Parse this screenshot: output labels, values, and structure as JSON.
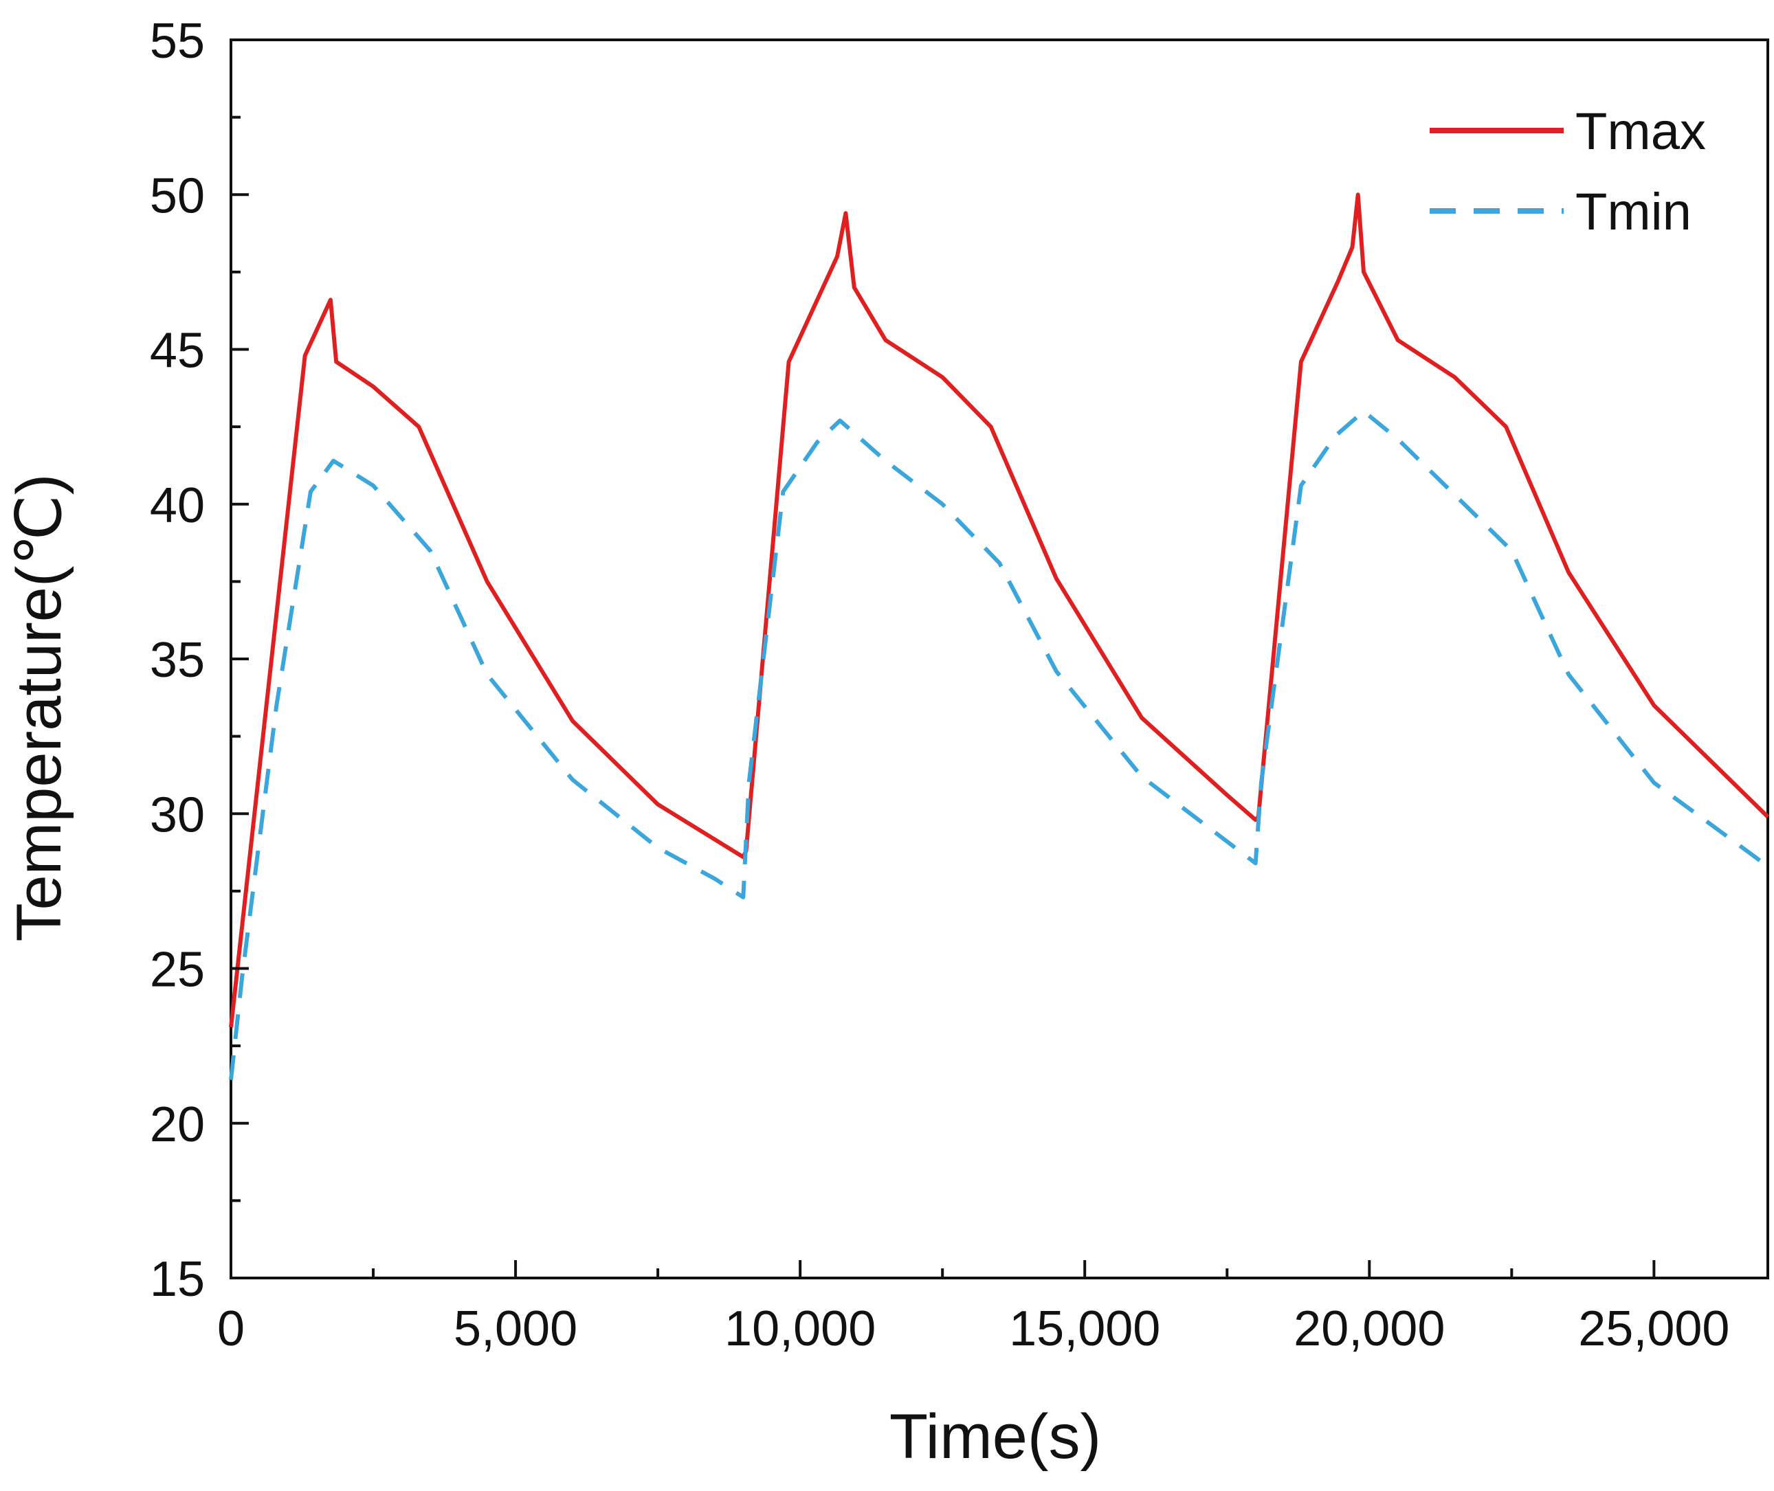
{
  "chart_data": {
    "type": "line",
    "title": "",
    "xlabel": "Time(s)",
    "ylabel": "Temperature(℃)",
    "xlim": [
      0,
      27000
    ],
    "ylim": [
      15,
      55
    ],
    "xticks": [
      0,
      5000,
      10000,
      15000,
      20000,
      25000
    ],
    "xtick_labels": [
      "0",
      "5,000",
      "10,000",
      "15,000",
      "20,000",
      "25,000"
    ],
    "yticks": [
      15,
      20,
      25,
      30,
      35,
      40,
      45,
      50,
      55
    ],
    "ytick_labels": [
      "15",
      "20",
      "25",
      "30",
      "35",
      "40",
      "45",
      "50",
      "55"
    ],
    "legend_position": "top-right",
    "grid": false,
    "series": [
      {
        "name": "Tmax",
        "color": "#e02020",
        "style": "solid",
        "x": [
          0,
          1300,
          1750,
          1850,
          2500,
          3300,
          4500,
          6000,
          7500,
          9000,
          9050,
          9800,
          10400,
          10650,
          10800,
          10950,
          11500,
          12500,
          13350,
          14500,
          16000,
          17500,
          18000,
          18050,
          18800,
          19450,
          19700,
          19800,
          19900,
          20500,
          21500,
          22400,
          23500,
          25000,
          27000
        ],
        "y": [
          23.1,
          44.8,
          46.6,
          44.6,
          43.8,
          42.5,
          37.5,
          33.0,
          30.3,
          28.6,
          28.8,
          44.6,
          47.0,
          48.0,
          49.4,
          47.0,
          45.3,
          44.1,
          42.5,
          37.6,
          33.1,
          30.6,
          29.8,
          29.9,
          44.6,
          47.2,
          48.3,
          50.0,
          47.5,
          45.3,
          44.1,
          42.5,
          37.8,
          33.5,
          29.9
        ]
      },
      {
        "name": "Tmin",
        "color": "#3aa6dc",
        "style": "dashed",
        "x": [
          0,
          200,
          800,
          1400,
          1800,
          2500,
          3500,
          4500,
          6000,
          7500,
          8500,
          9000,
          9100,
          9700,
          10300,
          10700,
          11500,
          12500,
          13500,
          14500,
          16000,
          17500,
          18000,
          18100,
          18800,
          19400,
          19900,
          20500,
          21500,
          22500,
          23500,
          25000,
          27000
        ],
        "y": [
          21.4,
          24.8,
          33.5,
          40.4,
          41.4,
          40.6,
          38.5,
          34.5,
          31.1,
          28.9,
          27.9,
          27.3,
          31.0,
          40.4,
          42.0,
          42.7,
          41.4,
          40.0,
          38.1,
          34.6,
          31.2,
          29.1,
          28.4,
          31.0,
          40.6,
          42.2,
          43.0,
          42.1,
          40.3,
          38.5,
          34.5,
          31.0,
          28.3
        ]
      }
    ]
  }
}
